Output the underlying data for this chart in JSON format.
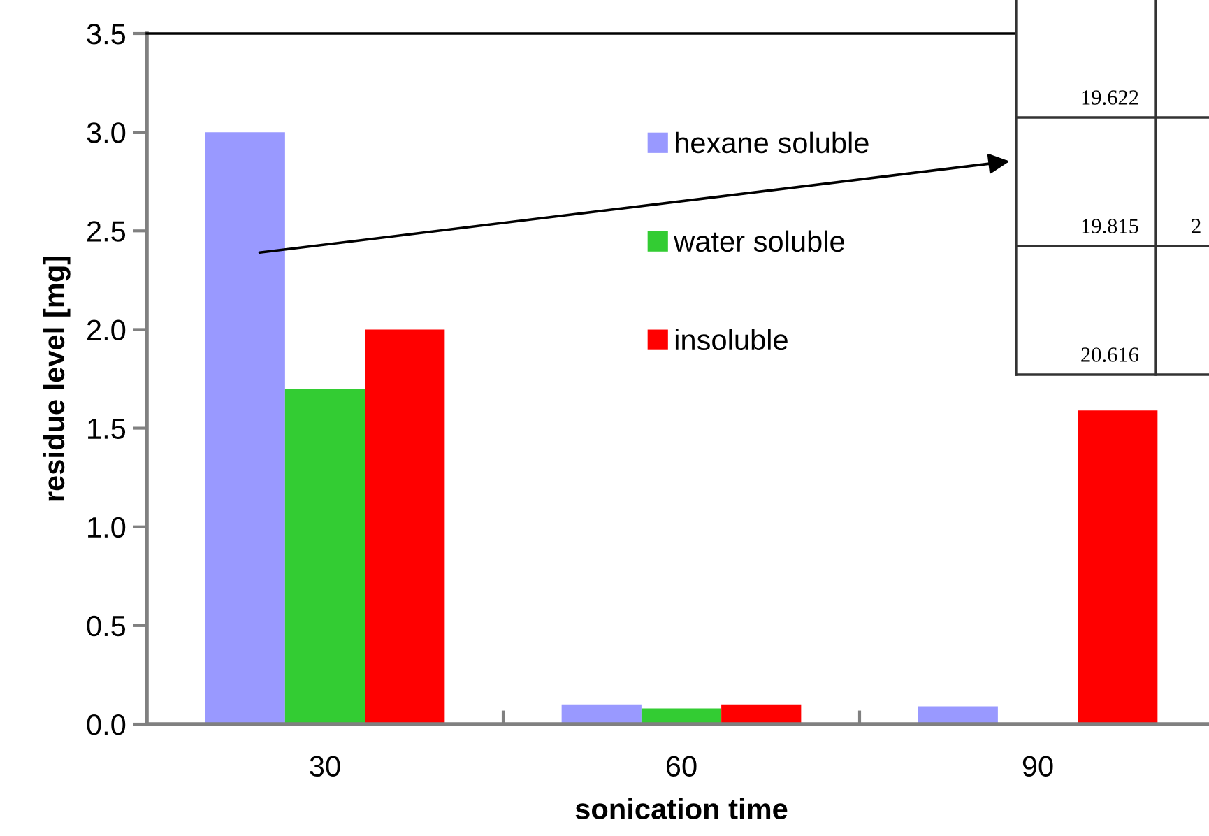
{
  "chart_data": {
    "type": "bar",
    "xlabel": "sonication time",
    "ylabel": "residue level [mg]",
    "categories": [
      "30",
      "60",
      "90"
    ],
    "series": [
      {
        "name": "hexane soluble",
        "color": "#9999ff",
        "values": [
          3.0,
          0.1,
          0.09
        ]
      },
      {
        "name": "water soluble",
        "color": "#33cc33",
        "values": [
          1.7,
          0.08,
          null
        ]
      },
      {
        "name": "insoluble",
        "color": "#ff0000",
        "values": [
          2.0,
          0.1,
          1.59
        ]
      }
    ],
    "ylim": [
      0,
      3.5
    ],
    "yticks": [
      {
        "value": 0,
        "label": "0.0"
      },
      {
        "value": 0.5,
        "label": "0.5"
      },
      {
        "value": 1,
        "label": "1.0"
      },
      {
        "value": 1.5,
        "label": "1.5"
      },
      {
        "value": 2,
        "label": "2.0"
      },
      {
        "value": 2.5,
        "label": "2.5"
      },
      {
        "value": 3,
        "label": "3.0"
      },
      {
        "value": 3.5,
        "label": "3.5"
      }
    ],
    "grid": false,
    "legend": "top",
    "annotations": [
      "19.622",
      "19.815",
      "2",
      "20.616"
    ]
  }
}
